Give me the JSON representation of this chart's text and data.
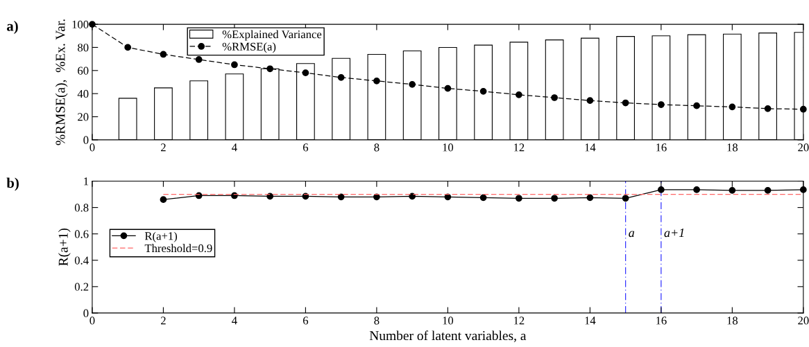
{
  "chart_data": [
    {
      "type": "bar",
      "ylabel": "%RMSE(a),  %Ex. Var.",
      "annotations": [
        "a)"
      ],
      "xlim": [
        0,
        20
      ],
      "xticks": [
        0,
        2,
        4,
        6,
        8,
        10,
        12,
        14,
        16,
        18,
        20
      ],
      "ylim": [
        0,
        100
      ],
      "yticks": [
        0,
        20,
        40,
        60,
        80,
        100
      ],
      "legend": "top center",
      "grid": false,
      "series": [
        {
          "name": "%Explained Variance",
          "color": "#ffffff",
          "x": [
            1,
            2,
            3,
            4,
            5,
            6,
            7,
            8,
            9,
            10,
            11,
            12,
            13,
            14,
            15,
            16,
            17,
            18,
            19,
            20
          ],
          "values": [
            36,
            45,
            51,
            57,
            61.5,
            66,
            70.5,
            74,
            77,
            80,
            82,
            84.5,
            86.5,
            88,
            89.5,
            90,
            91,
            91.5,
            92.5,
            93
          ]
        },
        {
          "name": "%RMSE(a)",
          "type": "line",
          "color": "#000000",
          "marker": "circle",
          "line_style": "dashed",
          "x": [
            0,
            1,
            2,
            3,
            4,
            5,
            6,
            7,
            8,
            9,
            10,
            11,
            12,
            13,
            14,
            15,
            16,
            17,
            18,
            19,
            20
          ],
          "values": [
            100,
            80,
            74,
            69.5,
            65,
            61.5,
            58,
            54,
            51,
            48,
            44.5,
            42,
            39,
            36.5,
            34,
            32,
            30.5,
            29.5,
            28.5,
            27,
            26.5
          ]
        }
      ]
    },
    {
      "type": "line",
      "ylabel": "R(a+1)",
      "xlabel": "Number of latent variables, a",
      "annotations": [
        "b)"
      ],
      "xlim": [
        0,
        20
      ],
      "xticks": [
        0,
        2,
        4,
        6,
        8,
        10,
        12,
        14,
        16,
        18,
        20
      ],
      "ylim": [
        0,
        1
      ],
      "yticks": [
        0,
        0.2,
        0.4,
        0.6,
        0.8,
        1
      ],
      "legend": "center left",
      "grid": false,
      "series": [
        {
          "name": "R(a+1)",
          "color": "#000000",
          "marker": "circle",
          "line_style": "solid",
          "x": [
            2,
            3,
            4,
            5,
            6,
            7,
            8,
            9,
            10,
            11,
            12,
            13,
            14,
            15,
            16,
            17,
            18,
            19,
            20
          ],
          "values": [
            0.86,
            0.89,
            0.89,
            0.885,
            0.885,
            0.88,
            0.88,
            0.885,
            0.88,
            0.875,
            0.87,
            0.87,
            0.875,
            0.87,
            0.935,
            0.935,
            0.93,
            0.93,
            0.935
          ]
        },
        {
          "name": "Threshold=0.9",
          "color": "#ff6666",
          "marker": "none",
          "line_style": "dashed",
          "x": [
            2,
            20
          ],
          "values": [
            0.9,
            0.9
          ]
        }
      ],
      "ref_lines": [
        {
          "axis": "x",
          "value": 15,
          "label": "a",
          "color": "#3333ff",
          "line_style": "dashed"
        },
        {
          "axis": "x",
          "value": 16,
          "label": "a+1",
          "color": "#3333ff",
          "line_style": "dashed"
        }
      ]
    }
  ]
}
